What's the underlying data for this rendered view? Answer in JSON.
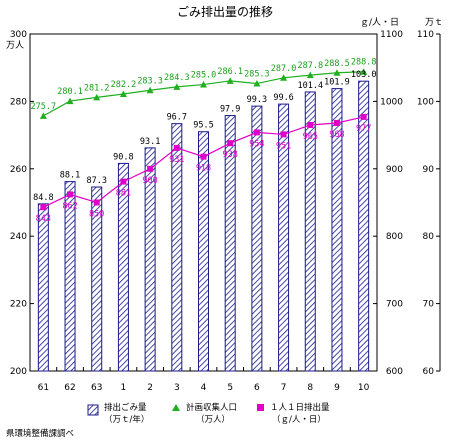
{
  "chart_data": {
    "type": "bar",
    "title": "ごみ排出量の推移",
    "categories": [
      "61",
      "62",
      "63",
      "1",
      "2",
      "3",
      "4",
      "5",
      "6",
      "7",
      "8",
      "9",
      "10"
    ],
    "y_left": {
      "unit": "万人",
      "range": [
        200,
        300
      ],
      "ticks": [
        200,
        220,
        240,
        260,
        280,
        300
      ]
    },
    "y_right_inner": {
      "unit": "ｇ/人・日",
      "range": [
        600,
        1100
      ],
      "ticks": [
        600,
        700,
        800,
        900,
        1000,
        1100
      ]
    },
    "y_right_outer": {
      "unit": "万ｔ",
      "range": [
        60,
        110
      ],
      "ticks": [
        60,
        70,
        80,
        90,
        100,
        110
      ]
    },
    "series": [
      {
        "name": "排出ごみ量",
        "name_line2": "（万ｔ/年）",
        "axis": "right_outer",
        "render": "bar",
        "color": "#1a1a8c",
        "values": [
          84.8,
          88.1,
          87.3,
          90.8,
          93.1,
          96.7,
          95.5,
          97.9,
          99.3,
          99.6,
          101.4,
          101.9,
          103.0
        ],
        "labels": [
          "84.8",
          "88.1",
          "87.3",
          "90.8",
          "93.1",
          "96.7",
          "95.5",
          "97.9",
          "99.3",
          "99.6",
          "101.4",
          "101.9",
          "103.0"
        ]
      },
      {
        "name": "計画収集人口",
        "name_line2": "（万人）",
        "axis": "left",
        "render": "line",
        "marker": "triangle",
        "color": "#1fb01f",
        "values": [
          275.7,
          280.1,
          281.2,
          282.2,
          283.3,
          284.3,
          285.0,
          286.1,
          285.3,
          287.0,
          287.8,
          288.5,
          288.8
        ],
        "labels": [
          "275.7",
          "280.1",
          "281.2",
          "282.2",
          "283.3",
          "284.3",
          "285.0",
          "286.1",
          "285.3",
          "287.0",
          "287.8",
          "288.5",
          "288.8"
        ]
      },
      {
        "name": "１人１日排出量",
        "name_line2": "（ｇ/人・日）",
        "axis": "right_inner",
        "render": "line",
        "marker": "square",
        "color": "#e000c8",
        "values": [
          843,
          862,
          850,
          881,
          900,
          931,
          918,
          938,
          954,
          951,
          965,
          968,
          977
        ],
        "labels": [
          "843",
          "862",
          "850",
          "881",
          "900",
          "931",
          "918",
          "938",
          "954",
          "951",
          "965",
          "968",
          "977"
        ]
      }
    ],
    "legend_position": "bottom",
    "grid": false,
    "source": "県環境整備課調べ"
  }
}
